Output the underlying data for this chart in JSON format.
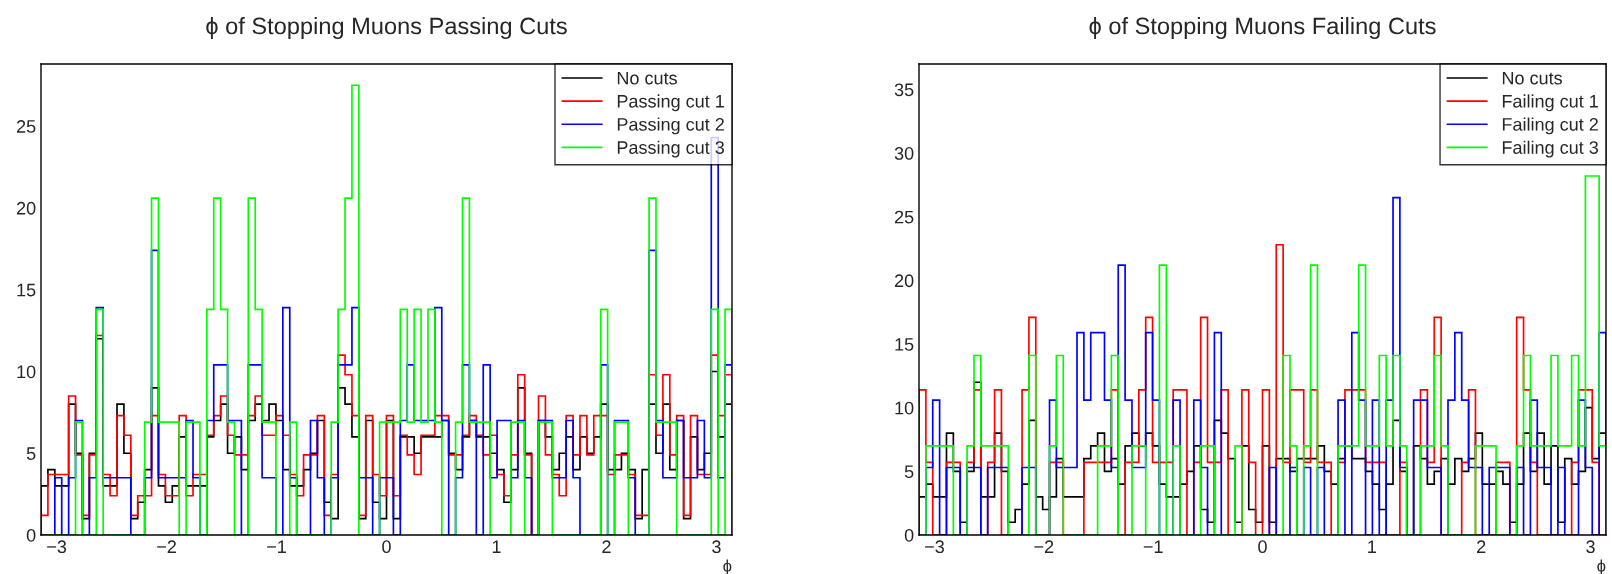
{
  "chart_data": [
    {
      "type": "histogram",
      "title": "ϕ of Stopping Muons Passing Cuts",
      "xlabel": "ϕ",
      "legend": "top right",
      "bins": [
        -3.1416,
        -3.0788,
        -3.0159,
        -2.9531,
        -2.8903,
        -2.8274,
        -2.7646,
        -2.7018,
        -2.6389,
        -2.5761,
        -2.5133,
        -2.4504,
        -2.3876,
        -2.3248,
        -2.2619,
        -2.1991,
        -2.1363,
        -2.0735,
        -2.0106,
        -1.9478,
        -1.885,
        -1.8221,
        -1.7593,
        -1.6965,
        -1.6336,
        -1.5708,
        -1.508,
        -1.4451,
        -1.3823,
        -1.3195,
        -1.2566,
        -1.1938,
        -1.131,
        -1.0681,
        -1.0053,
        -0.9425,
        -0.8796,
        -0.8168,
        -0.754,
        -0.6912,
        -0.6283,
        -0.5655,
        -0.5027,
        -0.4398,
        -0.377,
        -0.3142,
        -0.2513,
        -0.1885,
        -0.1257,
        -0.0628,
        0,
        0.0628,
        0.1257,
        0.1885,
        0.2513,
        0.3142,
        0.377,
        0.4398,
        0.5027,
        0.5655,
        0.6283,
        0.6912,
        0.754,
        0.8168,
        0.8796,
        0.9425,
        1.0053,
        1.0681,
        1.131,
        1.1938,
        1.2566,
        1.3195,
        1.3823,
        1.4451,
        1.508,
        1.5708,
        1.6336,
        1.6965,
        1.7593,
        1.8221,
        1.885,
        1.9478,
        2.0106,
        2.0735,
        2.1363,
        2.1991,
        2.2619,
        2.3248,
        2.3876,
        2.4504,
        2.5133,
        2.5761,
        2.6389,
        2.7018,
        2.7646,
        2.8274,
        2.8903,
        2.9531,
        3.0159,
        3.0788,
        3.1416
      ],
      "series": [
        {
          "name": "No cuts",
          "color": "#000000",
          "values": [
            3,
            4,
            3,
            3,
            8,
            5,
            1,
            5,
            12,
            3,
            3,
            8,
            5,
            1,
            2,
            4,
            9,
            3,
            2,
            3,
            6,
            3,
            3,
            3,
            6,
            7,
            8,
            5,
            6,
            4,
            7,
            8,
            7,
            8,
            7,
            4,
            3,
            3,
            4,
            5,
            7,
            2,
            1,
            9,
            8,
            6,
            1,
            7,
            2,
            1,
            7,
            1,
            6,
            6,
            5,
            6,
            6,
            6,
            7,
            5,
            4,
            6,
            7,
            6,
            6,
            5,
            4,
            2,
            4,
            9,
            5,
            0,
            7,
            6,
            4,
            5,
            6,
            4,
            6,
            5,
            6,
            8,
            4,
            4,
            5,
            4,
            1,
            4,
            8,
            5,
            8,
            4,
            7,
            1,
            6,
            4,
            5,
            10,
            6,
            8
          ]
        },
        {
          "name": "Passing cut 1",
          "color": "#ff0000",
          "values": [
            1.2,
            3.7,
            3.7,
            3.7,
            8.5,
            4.9,
            1.2,
            4.9,
            12.2,
            3.7,
            2.4,
            7.3,
            6.1,
            1.2,
            2.4,
            2.4,
            7.3,
            3.7,
            2.4,
            2.4,
            7.3,
            2.4,
            3.7,
            3.7,
            6.1,
            7.3,
            8.5,
            6.1,
            4.9,
            4.9,
            7.3,
            8.5,
            6.1,
            6.1,
            7.3,
            6.1,
            3.7,
            2.4,
            4.9,
            4.9,
            7.3,
            1.2,
            3.7,
            11.0,
            9.8,
            7.3,
            1.2,
            7.3,
            3.7,
            2.4,
            7.3,
            2.4,
            6.1,
            4.9,
            3.7,
            6.1,
            6.1,
            7.3,
            7.3,
            4.9,
            4.9,
            6.1,
            7.3,
            6.1,
            4.9,
            6.1,
            3.7,
            2.4,
            4.9,
            9.8,
            4.9,
            0,
            8.5,
            4.9,
            3.7,
            2.4,
            7.3,
            4.9,
            7.3,
            4.9,
            7.3,
            7.3,
            3.7,
            4.9,
            4.9,
            3.7,
            1.2,
            1.2,
            9.8,
            6.1,
            9.8,
            4.9,
            7.3,
            1.2,
            7.3,
            3.7,
            3.7,
            11.0,
            7.3,
            9.8
          ]
        },
        {
          "name": "Passing cut 2",
          "color": "#0000ff",
          "values": [
            0,
            0,
            3.5,
            0,
            3.5,
            7,
            0,
            3.5,
            13.9,
            3.5,
            3.5,
            3.5,
            3.5,
            0,
            0,
            3.5,
            17.4,
            3.5,
            3.5,
            3.5,
            3.5,
            7,
            3.5,
            0,
            7,
            10.4,
            10.4,
            7,
            7,
            0,
            10.4,
            10.4,
            3.5,
            3.5,
            0,
            13.9,
            3.5,
            0,
            0,
            7,
            3.5,
            0,
            3.5,
            10.4,
            10.4,
            13.9,
            3.5,
            3.5,
            0,
            3.5,
            3.5,
            0,
            7,
            10.4,
            7,
            7,
            7,
            13.9,
            7,
            0,
            3.5,
            10.4,
            7,
            0,
            10.4,
            3.5,
            7,
            7,
            3.5,
            7,
            3.5,
            0,
            7,
            7,
            3.5,
            3.5,
            7,
            3.5,
            0,
            0,
            0,
            10.4,
            0,
            7,
            7,
            3.5,
            0,
            0,
            17.4,
            7,
            3.5,
            3.5,
            7,
            3.5,
            3.5,
            7,
            3.5,
            24.3,
            3.5,
            10.4
          ]
        },
        {
          "name": "Passing cut 3",
          "color": "#00ff00",
          "values": [
            0,
            0,
            0,
            0,
            0,
            6.9,
            0,
            0,
            13.8,
            0,
            0,
            0,
            0,
            0,
            0,
            6.9,
            20.6,
            6.9,
            6.9,
            6.9,
            0,
            6.9,
            6.9,
            0,
            13.8,
            20.6,
            13.8,
            6.9,
            0,
            0,
            20.6,
            13.8,
            6.9,
            6.9,
            0,
            0,
            6.9,
            0,
            0,
            0,
            0,
            0,
            6.9,
            13.8,
            20.6,
            27.5,
            0,
            0,
            0,
            6.9,
            6.9,
            6.9,
            13.8,
            6.9,
            13.8,
            6.9,
            13.8,
            6.9,
            0,
            0,
            6.9,
            20.6,
            6.9,
            6.9,
            6.9,
            0,
            0,
            0,
            6.9,
            6.9,
            0,
            0,
            6.9,
            6.9,
            0,
            0,
            0,
            0,
            0,
            0,
            0,
            13.8,
            0,
            6.9,
            6.9,
            0,
            0,
            0,
            20.6,
            6.9,
            6.9,
            6.9,
            0,
            0,
            0,
            0,
            0,
            13.8,
            0,
            13.8
          ]
        }
      ],
      "xlim": [
        -3.1416,
        3.1416
      ],
      "ylim": [
        0,
        28.8
      ],
      "xticks": [
        {
          "value": -3,
          "label": "−3"
        },
        {
          "value": -2,
          "label": "−2"
        },
        {
          "value": -1,
          "label": "−1"
        },
        0,
        1,
        2,
        3
      ],
      "yticks": [
        0,
        5,
        10,
        15,
        20,
        25
      ]
    },
    {
      "type": "histogram",
      "title": "ϕ of Stopping Muons Failing Cuts",
      "xlabel": "ϕ",
      "legend": "top right",
      "bins": [
        -3.1416,
        -3.0788,
        -3.0159,
        -2.9531,
        -2.8903,
        -2.8274,
        -2.7646,
        -2.7018,
        -2.6389,
        -2.5761,
        -2.5133,
        -2.4504,
        -2.3876,
        -2.3248,
        -2.2619,
        -2.1991,
        -2.1363,
        -2.0735,
        -2.0106,
        -1.9478,
        -1.885,
        -1.8221,
        -1.7593,
        -1.6965,
        -1.6336,
        -1.5708,
        -1.508,
        -1.4451,
        -1.3823,
        -1.3195,
        -1.2566,
        -1.1938,
        -1.131,
        -1.0681,
        -1.0053,
        -0.9425,
        -0.8796,
        -0.8168,
        -0.754,
        -0.6912,
        -0.6283,
        -0.5655,
        -0.5027,
        -0.4398,
        -0.377,
        -0.3142,
        -0.2513,
        -0.1885,
        -0.1257,
        -0.0628,
        0,
        0.0628,
        0.1257,
        0.1885,
        0.2513,
        0.3142,
        0.377,
        0.4398,
        0.5027,
        0.5655,
        0.6283,
        0.6912,
        0.754,
        0.8168,
        0.8796,
        0.9425,
        1.0053,
        1.0681,
        1.131,
        1.1938,
        1.2566,
        1.3195,
        1.3823,
        1.4451,
        1.508,
        1.5708,
        1.6336,
        1.6965,
        1.7593,
        1.8221,
        1.885,
        1.9478,
        2.0106,
        2.0735,
        2.1363,
        2.1991,
        2.2619,
        2.3248,
        2.3876,
        2.4504,
        2.5133,
        2.5761,
        2.6389,
        2.7018,
        2.7646,
        2.8274,
        2.8903,
        2.9531,
        3.0159,
        3.0788,
        3.1416
      ],
      "series": [
        {
          "name": "No cuts",
          "color": "#000000",
          "values": [
            3,
            4,
            3,
            3,
            8,
            5,
            1,
            5,
            12,
            3,
            3,
            8,
            5,
            1,
            2,
            4,
            9,
            3,
            2,
            3,
            6,
            3,
            3,
            3,
            6,
            7,
            8,
            5,
            6,
            4,
            7,
            8,
            7,
            8,
            7,
            4,
            3,
            3,
            4,
            5,
            7,
            2,
            1,
            9,
            8,
            6,
            1,
            7,
            2,
            1,
            7,
            1,
            6,
            6,
            5,
            6,
            6,
            6,
            7,
            5,
            4,
            6,
            7,
            6,
            6,
            5,
            4,
            2,
            4,
            9,
            5,
            0,
            7,
            6,
            4,
            5,
            6,
            4,
            6,
            5,
            6,
            8,
            4,
            4,
            5,
            4,
            1,
            4,
            8,
            5,
            8,
            4,
            7,
            1,
            6,
            4,
            5,
            10,
            6,
            8
          ]
        },
        {
          "name": "Failing cut 1",
          "color": "#ff0000",
          "values": [
            11.4,
            5.7,
            0,
            0,
            5.7,
            5.7,
            0,
            5.7,
            11.4,
            0,
            5.7,
            11.4,
            0,
            0,
            0,
            11.4,
            17.1,
            0,
            0,
            5.7,
            5.7,
            0,
            0,
            0,
            5.7,
            5.7,
            5.7,
            5.7,
            11.4,
            0,
            5.7,
            5.7,
            11.4,
            17.1,
            5.7,
            5.7,
            5.7,
            11.4,
            11.4,
            0,
            5.7,
            17.1,
            5.7,
            5.7,
            11.4,
            0,
            0,
            11.4,
            5.7,
            0,
            11.4,
            0,
            22.8,
            5.7,
            11.4,
            11.4,
            5.7,
            11.4,
            5.7,
            5.7,
            0,
            5.7,
            11.4,
            11.4,
            11.4,
            5.7,
            5.7,
            5.7,
            0,
            0,
            5.7,
            0,
            0,
            11.4,
            5.7,
            17.1,
            0,
            0,
            0,
            5.7,
            11.4,
            0,
            0,
            0,
            5.7,
            5.7,
            0,
            17.1,
            11.4,
            5.7,
            0,
            0,
            0,
            0,
            0,
            5.7,
            11.4,
            11.4,
            5.7,
            0
          ]
        },
        {
          "name": "Failing cut 2",
          "color": "#0000ff",
          "values": [
            0,
            5.3,
            10.6,
            0,
            5.3,
            5.3,
            0,
            5.3,
            5.3,
            0,
            5.3,
            5.3,
            5.3,
            0,
            0,
            5.3,
            5.3,
            0,
            0,
            10.6,
            5.3,
            5.3,
            5.3,
            15.9,
            10.6,
            15.9,
            15.9,
            10.6,
            5.3,
            21.2,
            10.6,
            5.3,
            5.3,
            15.9,
            10.6,
            0,
            0,
            10.6,
            0,
            0,
            10.6,
            5.3,
            0,
            15.9,
            0,
            0,
            0,
            0,
            0,
            0,
            0,
            5.3,
            0,
            0,
            5.3,
            0,
            5.3,
            0,
            5.3,
            0,
            0,
            10.6,
            0,
            15.9,
            10.6,
            0,
            10.6,
            0,
            10.6,
            26.5,
            5.3,
            0,
            10.6,
            10.6,
            5.3,
            5.3,
            0,
            10.6,
            15.9,
            10.6,
            5.3,
            5.3,
            0,
            5.3,
            5.3,
            5.3,
            0,
            5.3,
            0,
            10.6,
            5.3,
            5.3,
            0,
            5.3,
            0,
            0,
            10.6,
            5.3,
            0,
            15.9
          ]
        },
        {
          "name": "Failing cut 3",
          "color": "#00ff00",
          "values": [
            0,
            7,
            7,
            7,
            7,
            0,
            0,
            7,
            14.1,
            7,
            7,
            7,
            7,
            0,
            0,
            0,
            14.1,
            0,
            0,
            7,
            14.1,
            0,
            0,
            0,
            0,
            0,
            7,
            7,
            14.1,
            0,
            0,
            7,
            7,
            0,
            0,
            21.2,
            0,
            7,
            0,
            0,
            0,
            7,
            7,
            0,
            0,
            0,
            7,
            0,
            0,
            0,
            0,
            0,
            0,
            14.1,
            7,
            0,
            7,
            21.2,
            0,
            0,
            0,
            7,
            7,
            7,
            21.2,
            7,
            7,
            14.1,
            7,
            14.1,
            7,
            0,
            0,
            7,
            7,
            14.1,
            7,
            0,
            0,
            0,
            0,
            7,
            7,
            7,
            0,
            0,
            0,
            7,
            14.1,
            7,
            7,
            7,
            14.1,
            7,
            7,
            14.1,
            7,
            28.2,
            28.2,
            7
          ]
        }
      ],
      "xlim": [
        -3.1416,
        3.1416
      ],
      "ylim": [
        0,
        37
      ],
      "xticks": [
        {
          "value": -3,
          "label": "−3"
        },
        {
          "value": -2,
          "label": "−2"
        },
        {
          "value": -1,
          "label": "−1"
        },
        0,
        1,
        2,
        3
      ],
      "yticks": [
        0,
        5,
        10,
        15,
        20,
        25,
        30,
        35
      ]
    }
  ]
}
